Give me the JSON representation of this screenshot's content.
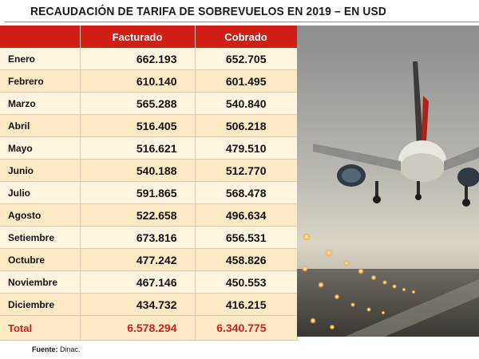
{
  "title": "RECAUDACIÓN DE TARIFA DE SOBREVUELOS EN 2019 – EN USD",
  "source_label": "Fuente:",
  "source_value": "Dinac.",
  "colors": {
    "header_red": "#d11f17",
    "row_light": "#fef4df",
    "row_dark": "#fde9c4",
    "total_text": "#d11f17"
  },
  "chart_data": {
    "type": "table",
    "title": "RECAUDACIÓN DE TARIFA DE SOBREVUELOS EN 2019 – EN USD",
    "columns": [
      "",
      "Facturado",
      "Cobrado"
    ],
    "rows": [
      {
        "month": "Enero",
        "facturado": "662.193",
        "cobrado": "652.705"
      },
      {
        "month": "Febrero",
        "facturado": "610.140",
        "cobrado": "601.495"
      },
      {
        "month": "Marzo",
        "facturado": "565.288",
        "cobrado": "540.840"
      },
      {
        "month": "Abril",
        "facturado": "516.405",
        "cobrado": "506.218"
      },
      {
        "month": "Mayo",
        "facturado": "516.621",
        "cobrado": "479.510"
      },
      {
        "month": "Junio",
        "facturado": "540.188",
        "cobrado": "512.770"
      },
      {
        "month": "Julio",
        "facturado": "591.865",
        "cobrado": "568.478"
      },
      {
        "month": "Agosto",
        "facturado": "522.658",
        "cobrado": "496.634"
      },
      {
        "month": "Setiembre",
        "facturado": "673.816",
        "cobrado": "656.531"
      },
      {
        "month": "Octubre",
        "facturado": "477.242",
        "cobrado": "458.826"
      },
      {
        "month": "Noviembre",
        "facturado": "467.146",
        "cobrado": "450.553"
      },
      {
        "month": "Diciembre",
        "facturado": "434.732",
        "cobrado": "416.215"
      }
    ],
    "total": {
      "label": "Total",
      "facturado": "6.578.294",
      "cobrado": "6.340.775"
    }
  }
}
